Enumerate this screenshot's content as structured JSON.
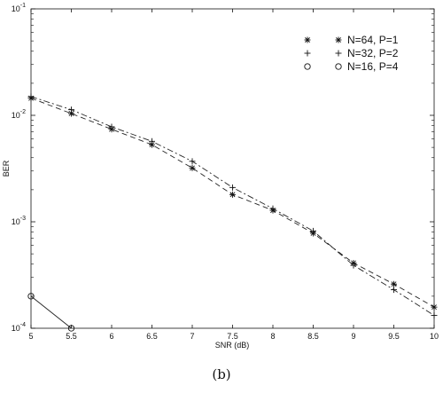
{
  "caption": "(b)",
  "chart_data": {
    "type": "line",
    "title": "",
    "xlabel": "SNR (dB)",
    "ylabel": "BER",
    "xlim": [
      5,
      10
    ],
    "ylim": [
      0.0001,
      0.1
    ],
    "yscale": "log",
    "grid": false,
    "legend_position": "top-right",
    "x_ticks": [
      5,
      5.5,
      6,
      6.5,
      7,
      7.5,
      8,
      8.5,
      9,
      9.5,
      10
    ],
    "x_tick_labels": [
      "5",
      "5.5",
      "6",
      "6.5",
      "7",
      "7.5",
      "8",
      "8.5",
      "9",
      "9.5",
      "10"
    ],
    "y_ticks": [
      {
        "value": 0.0001,
        "base": "10",
        "exp": "-4"
      },
      {
        "value": 0.001,
        "base": "10",
        "exp": "-3"
      },
      {
        "value": 0.01,
        "base": "10",
        "exp": "-2"
      },
      {
        "value": 0.1,
        "base": "10",
        "exp": "-1"
      }
    ],
    "series": [
      {
        "name": "N=64, P=1",
        "marker": "asterisk",
        "line": "dashed",
        "x": [
          5,
          5.5,
          6,
          6.5,
          7,
          7.5,
          8,
          8.5,
          9,
          9.5,
          10
        ],
        "y": [
          0.0145,
          0.0104,
          0.0074,
          0.0053,
          0.0032,
          0.0018,
          0.00128,
          0.00078,
          0.00041,
          0.00026,
          0.000158
        ]
      },
      {
        "name": "N=32, P=2",
        "marker": "plus",
        "line": "dashdot",
        "x": [
          5,
          5.5,
          6,
          6.5,
          7,
          7.5,
          8,
          8.5,
          9,
          9.5,
          10
        ],
        "y": [
          0.015,
          0.0113,
          0.0078,
          0.0057,
          0.0037,
          0.0021,
          0.00133,
          0.00082,
          0.00039,
          0.00023,
          0.000132
        ]
      },
      {
        "name": "N=16, P=4",
        "marker": "circle",
        "line": "solid",
        "x": [
          5,
          5.5
        ],
        "y": [
          0.0002,
          0.0001
        ]
      }
    ]
  }
}
